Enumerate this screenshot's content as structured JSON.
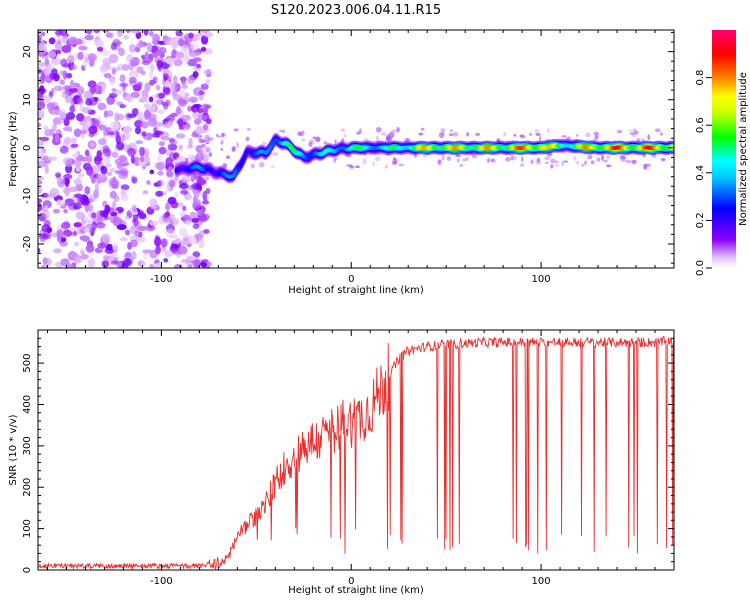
{
  "title": "S120.2023.006.04.11.R15",
  "chart_data": [
    {
      "type": "heatmap",
      "name": "spectrogram",
      "xlabel": "Height of straight line (km)",
      "ylabel": "Frequency (Hz)",
      "xlim": [
        -165,
        170
      ],
      "ylim": [
        -25,
        24.5
      ],
      "xticks": [
        -100,
        0,
        100
      ],
      "yticks": [
        -20,
        -10,
        0,
        10,
        20
      ],
      "colorbar": {
        "label": "Normalized spectral amplitude",
        "range": [
          0,
          1
        ],
        "ticks": [
          "0.0",
          "0.2",
          "0.4",
          "0.6",
          "0.8"
        ],
        "colors": [
          "#ffffff",
          "#8a00ff",
          "#0000ff",
          "#00ffff",
          "#00ff00",
          "#ffff00",
          "#ff8000",
          "#ff0000",
          "#ff0070"
        ]
      },
      "noise_region": {
        "x_from": -165,
        "x_to": -80,
        "amplitude": 0.15
      },
      "signal_trace": [
        {
          "x": -90,
          "y": -4.5,
          "amplitude": 0.3
        },
        {
          "x": -80,
          "y": -4,
          "amplitude": 0.35
        },
        {
          "x": -72,
          "y": -5,
          "amplitude": 0.35
        },
        {
          "x": -62,
          "y": -6,
          "amplitude": 0.35
        },
        {
          "x": -55,
          "y": -1,
          "amplitude": 0.35
        },
        {
          "x": -45,
          "y": -1,
          "amplitude": 0.35
        },
        {
          "x": -40,
          "y": 1.5,
          "amplitude": 0.45
        },
        {
          "x": -35,
          "y": 1,
          "amplitude": 0.6
        },
        {
          "x": -25,
          "y": -2,
          "amplitude": 0.45
        },
        {
          "x": -10,
          "y": -0.5,
          "amplitude": 0.45
        },
        {
          "x": 0,
          "y": 0,
          "amplitude": 0.55
        },
        {
          "x": 20,
          "y": 0,
          "amplitude": 0.5
        },
        {
          "x": 40,
          "y": 0,
          "amplitude": 0.8
        },
        {
          "x": 60,
          "y": 0,
          "amplitude": 0.8
        },
        {
          "x": 80,
          "y": 0,
          "amplitude": 0.8
        },
        {
          "x": 100,
          "y": 0,
          "amplitude": 0.95
        },
        {
          "x": 110,
          "y": 0.5,
          "amplitude": 0.6
        },
        {
          "x": 130,
          "y": 0,
          "amplitude": 0.9
        },
        {
          "x": 150,
          "y": 0,
          "amplitude": 0.9
        },
        {
          "x": 170,
          "y": 0,
          "amplitude": 0.9
        }
      ]
    },
    {
      "type": "line",
      "name": "snr",
      "xlabel": "Height of straight line (km)",
      "ylabel": "SNR (10 * v/v)",
      "xlim": [
        -165,
        170
      ],
      "ylim": [
        0,
        580
      ],
      "xticks": [
        -100,
        0,
        100
      ],
      "yticks": [
        0,
        100,
        200,
        300,
        400,
        500
      ],
      "color": "#e83030",
      "series": [
        {
          "x": [
            -165,
            -80,
            -70,
            -65,
            -60,
            -55,
            -50,
            -45,
            -40,
            -35,
            -30,
            -25,
            -20,
            -15,
            -10,
            -5,
            0,
            5,
            10,
            15,
            20,
            25,
            30,
            35,
            40,
            50,
            60,
            70,
            80,
            90,
            100,
            110,
            120,
            130,
            140,
            150,
            160,
            170
          ],
          "y": [
            10,
            10,
            15,
            30,
            80,
            110,
            130,
            160,
            210,
            250,
            270,
            300,
            310,
            320,
            340,
            350,
            360,
            370,
            390,
            430,
            470,
            510,
            530,
            535,
            540,
            545,
            548,
            550,
            550,
            550,
            550,
            550,
            550,
            550,
            550,
            550,
            550,
            555
          ]
        }
      ]
    }
  ]
}
